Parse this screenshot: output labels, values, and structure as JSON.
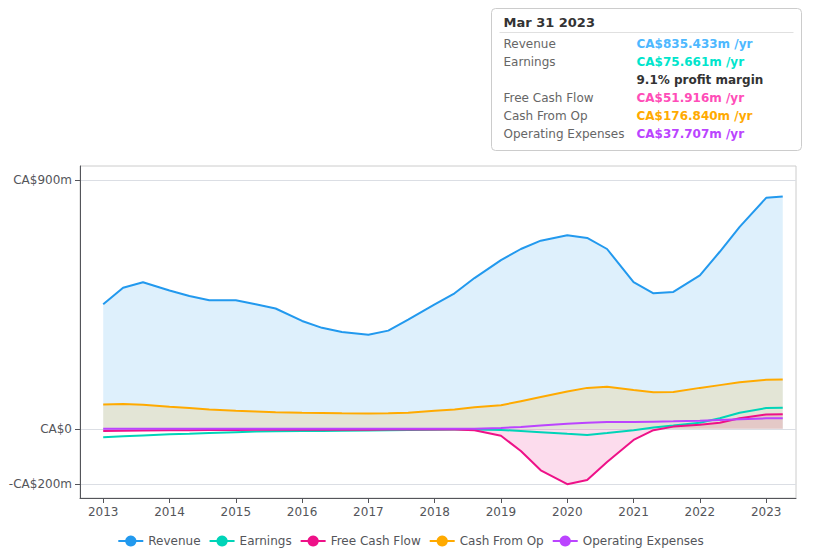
{
  "chart_data": {
    "type": "line",
    "x": [
      2013.0,
      2013.3,
      2013.6,
      2014.0,
      2014.3,
      2014.6,
      2015.0,
      2015.3,
      2015.6,
      2016.0,
      2016.3,
      2016.6,
      2017.0,
      2017.3,
      2017.6,
      2018.0,
      2018.3,
      2018.6,
      2019.0,
      2019.3,
      2019.6,
      2020.0,
      2020.3,
      2020.6,
      2021.0,
      2021.3,
      2021.6,
      2022.0,
      2022.3,
      2022.6,
      2023.0,
      2023.25
    ],
    "series": [
      {
        "name": "Revenue",
        "color": "#2299ee",
        "type": "area",
        "values": [
          450,
          510,
          530,
          500,
          480,
          465,
          465,
          450,
          435,
          390,
          365,
          350,
          340,
          355,
          395,
          450,
          490,
          545,
          610,
          650,
          680,
          700,
          690,
          650,
          530,
          490,
          495,
          555,
          640,
          730,
          835,
          840
        ]
      },
      {
        "name": "Earnings",
        "color": "#00d4b8",
        "type": "line",
        "values": [
          -30,
          -27,
          -24,
          -20,
          -18,
          -15,
          -12,
          -10,
          -9,
          -8,
          -8,
          -7,
          -6,
          -5,
          -4,
          -3,
          -2,
          -2,
          -4,
          -8,
          -12,
          -18,
          -22,
          -15,
          -5,
          5,
          12,
          22,
          38,
          58,
          75,
          76
        ]
      },
      {
        "name": "Free Cash Flow",
        "color": "#ee1188",
        "type": "area",
        "values": [
          -8,
          -7,
          -6,
          -5,
          -5,
          -4,
          -4,
          -3,
          -3,
          -3,
          -3,
          -3,
          -3,
          -2,
          -2,
          -2,
          -2,
          -5,
          -25,
          -80,
          -150,
          -200,
          -185,
          -120,
          -40,
          -5,
          8,
          15,
          22,
          38,
          52,
          53
        ]
      },
      {
        "name": "Cash From Op",
        "color": "#ffaa00",
        "type": "area",
        "values": [
          88,
          90,
          87,
          80,
          75,
          70,
          65,
          63,
          60,
          58,
          57,
          56,
          55,
          56,
          58,
          65,
          70,
          78,
          85,
          100,
          115,
          135,
          148,
          152,
          140,
          132,
          133,
          148,
          158,
          168,
          177,
          178
        ]
      },
      {
        "name": "Operating Expenses",
        "color": "#bb44ff",
        "type": "line",
        "values": [
          0,
          0,
          0,
          0,
          0,
          0,
          0,
          0,
          0,
          0,
          0,
          0,
          0,
          0,
          0,
          0,
          0,
          0,
          3,
          7,
          12,
          18,
          22,
          25,
          25,
          26,
          27,
          29,
          32,
          35,
          38,
          38
        ]
      }
    ],
    "xlim": [
      2012.65,
      2023.45
    ],
    "xticks": [
      2013,
      2014,
      2015,
      2016,
      2017,
      2018,
      2019,
      2020,
      2021,
      2022,
      2023
    ],
    "ylim": [
      -250,
      950
    ],
    "yticks": [
      {
        "value": -200,
        "label": "-CA$200m"
      },
      {
        "value": 0,
        "label": "CA$0"
      },
      {
        "value": 900,
        "label": "CA$900m"
      }
    ],
    "grid": true,
    "legend": "bottom",
    "annotation": {
      "title": "Mar 31 2023",
      "rows": [
        {
          "label": "Revenue",
          "text": "CA$835.433m /yr",
          "color": "#4db8ff"
        },
        {
          "label": "Earnings",
          "text": "CA$75.661m /yr",
          "color": "#00e5cc"
        },
        {
          "text": "9.1% profit margin"
        },
        {
          "label": "Free Cash Flow",
          "text": "CA$51.916m /yr",
          "color": "#ff4db8"
        },
        {
          "label": "Cash From Op",
          "text": "CA$176.840m /yr",
          "color": "#ffaa00"
        },
        {
          "label": "Operating Expenses",
          "text": "CA$37.707m /yr",
          "color": "#bb44ff"
        }
      ]
    }
  }
}
